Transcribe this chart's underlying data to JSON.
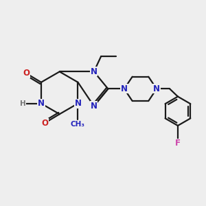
{
  "bg_color": "#eeeeee",
  "bond_color": "#1a1a1a",
  "N_color": "#2222bb",
  "O_color": "#cc2222",
  "F_color": "#cc44aa",
  "H_color": "#777777",
  "line_width": 1.6,
  "font_size": 8.5,
  "xlim": [
    0,
    10
  ],
  "ylim": [
    0,
    10
  ]
}
